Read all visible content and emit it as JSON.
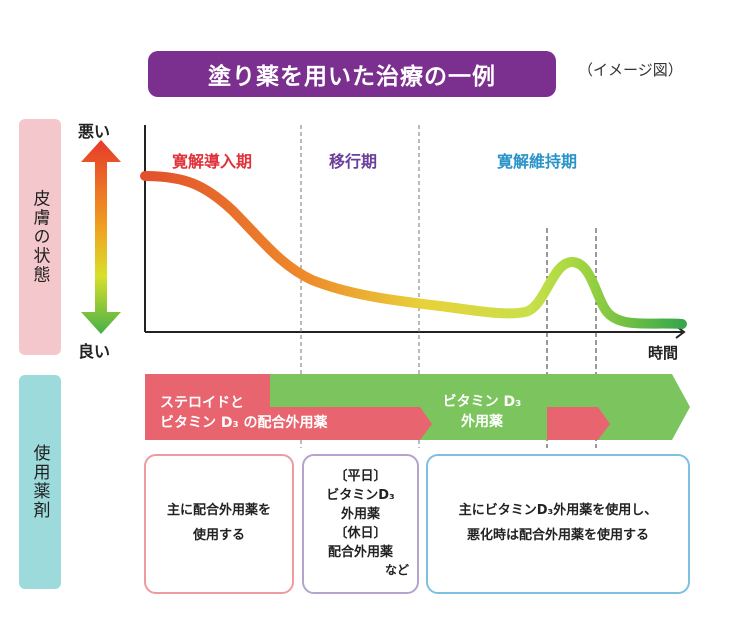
{
  "title": "塗り薬を用いた治療の一例",
  "title_note": "（イメージ図）",
  "side_labels": {
    "skin": "皮膚の状態",
    "drug": "使用薬剤"
  },
  "axis": {
    "bad": "悪い",
    "good": "良い",
    "time": "時間"
  },
  "phases": [
    "寛解導入期",
    "移行期",
    "寛解維持期"
  ],
  "bands": {
    "red_line1": "ステロイドと",
    "red_line2": "ビタミン D₃ の配合外用薬",
    "green_line1": "ビタミン D₃",
    "green_line2": "外用薬"
  },
  "boxes": {
    "box1": [
      "主に配合外用薬を",
      "使用する"
    ],
    "box2": [
      "〔平日〕",
      "ビタミンD₃",
      "外用薬",
      "〔休日〕",
      "配合外用薬"
    ],
    "box2_note": "など",
    "box3": [
      "主にビタミンD₃外用薬を使用し、",
      "悪化時は配合外用薬を使用する"
    ]
  },
  "colors": {
    "title_bg": "#7b2f8e",
    "phase_induction": "#e0323a",
    "phase_transition": "#6a3f9a",
    "phase_maintenance": "#2a93c8",
    "band_red": "#e8646e",
    "band_green": "#7cc55e",
    "side_pink": "#f3c7cb",
    "side_teal": "#9ddadc"
  }
}
